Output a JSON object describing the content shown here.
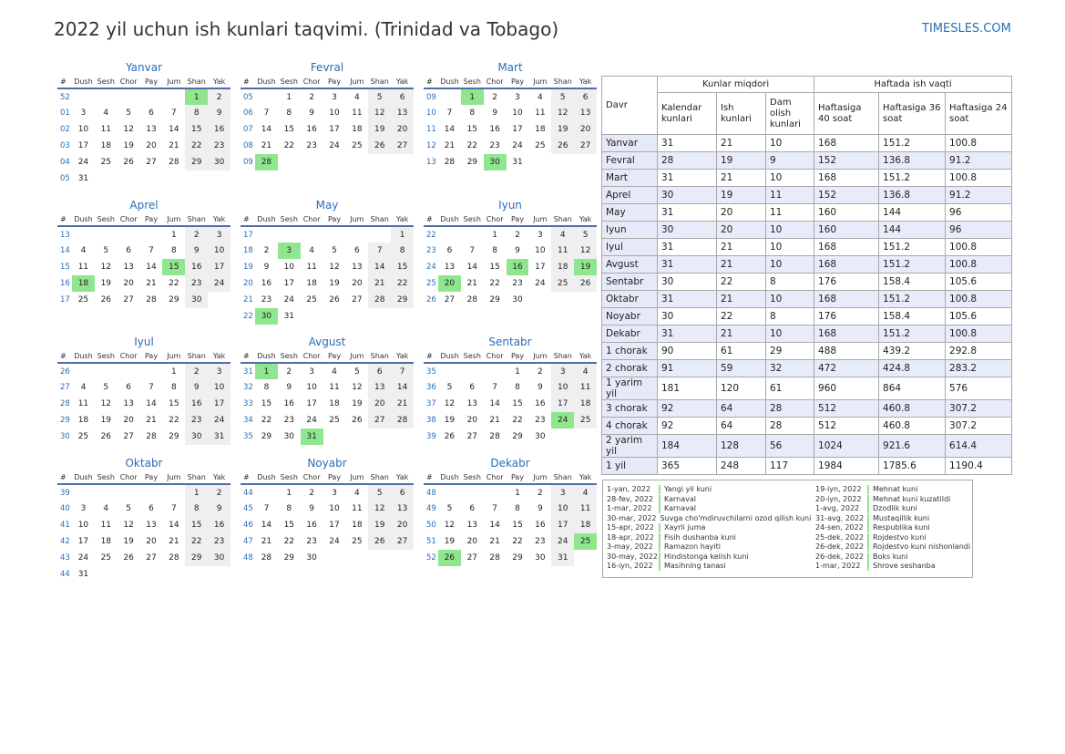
{
  "header": {
    "title": "2022 yil uchun ish kunlari taqvimi. (Trinidad va Tobago)",
    "site": "TIMESLES.COM"
  },
  "weekday_headers": [
    "#",
    "Dush",
    "Sesh",
    "Chor",
    "Pay",
    "Jum",
    "Shan",
    "Yak"
  ],
  "months": [
    {
      "name": "Yanvar",
      "weeks": [
        {
          "wk": "52",
          "days": [
            "",
            "",
            "",
            "",
            "",
            "1",
            "2"
          ]
        },
        {
          "wk": "01",
          "days": [
            "3",
            "4",
            "5",
            "6",
            "7",
            "8",
            "9"
          ]
        },
        {
          "wk": "02",
          "days": [
            "10",
            "11",
            "12",
            "13",
            "14",
            "15",
            "16"
          ]
        },
        {
          "wk": "03",
          "days": [
            "17",
            "18",
            "19",
            "20",
            "21",
            "22",
            "23"
          ]
        },
        {
          "wk": "04",
          "days": [
            "24",
            "25",
            "26",
            "27",
            "28",
            "29",
            "30"
          ]
        },
        {
          "wk": "05",
          "days": [
            "31",
            "",
            "",
            "",
            "",
            "",
            ""
          ]
        }
      ],
      "holidays": [
        "1"
      ]
    },
    {
      "name": "Fevral",
      "weeks": [
        {
          "wk": "05",
          "days": [
            "",
            "1",
            "2",
            "3",
            "4",
            "5",
            "6"
          ]
        },
        {
          "wk": "06",
          "days": [
            "7",
            "8",
            "9",
            "10",
            "11",
            "12",
            "13"
          ]
        },
        {
          "wk": "07",
          "days": [
            "14",
            "15",
            "16",
            "17",
            "18",
            "19",
            "20"
          ]
        },
        {
          "wk": "08",
          "days": [
            "21",
            "22",
            "23",
            "24",
            "25",
            "26",
            "27"
          ]
        },
        {
          "wk": "09",
          "days": [
            "28",
            "",
            "",
            "",
            "",
            "",
            ""
          ]
        }
      ],
      "holidays": [
        "28"
      ]
    },
    {
      "name": "Mart",
      "weeks": [
        {
          "wk": "09",
          "days": [
            "",
            "1",
            "2",
            "3",
            "4",
            "5",
            "6"
          ]
        },
        {
          "wk": "10",
          "days": [
            "7",
            "8",
            "9",
            "10",
            "11",
            "12",
            "13"
          ]
        },
        {
          "wk": "11",
          "days": [
            "14",
            "15",
            "16",
            "17",
            "18",
            "19",
            "20"
          ]
        },
        {
          "wk": "12",
          "days": [
            "21",
            "22",
            "23",
            "24",
            "25",
            "26",
            "27"
          ]
        },
        {
          "wk": "13",
          "days": [
            "28",
            "29",
            "30",
            "31",
            "",
            "",
            ""
          ]
        }
      ],
      "holidays": [
        "1",
        "30"
      ]
    },
    {
      "name": "Aprel",
      "weeks": [
        {
          "wk": "13",
          "days": [
            "",
            "",
            "",
            "",
            "1",
            "2",
            "3"
          ]
        },
        {
          "wk": "14",
          "days": [
            "4",
            "5",
            "6",
            "7",
            "8",
            "9",
            "10"
          ]
        },
        {
          "wk": "15",
          "days": [
            "11",
            "12",
            "13",
            "14",
            "15",
            "16",
            "17"
          ]
        },
        {
          "wk": "16",
          "days": [
            "18",
            "19",
            "20",
            "21",
            "22",
            "23",
            "24"
          ]
        },
        {
          "wk": "17",
          "days": [
            "25",
            "26",
            "27",
            "28",
            "29",
            "30",
            ""
          ]
        }
      ],
      "holidays": [
        "15",
        "18"
      ]
    },
    {
      "name": "May",
      "weeks": [
        {
          "wk": "17",
          "days": [
            "",
            "",
            "",
            "",
            "",
            "",
            "1"
          ]
        },
        {
          "wk": "18",
          "days": [
            "2",
            "3",
            "4",
            "5",
            "6",
            "7",
            "8"
          ]
        },
        {
          "wk": "19",
          "days": [
            "9",
            "10",
            "11",
            "12",
            "13",
            "14",
            "15"
          ]
        },
        {
          "wk": "20",
          "days": [
            "16",
            "17",
            "18",
            "19",
            "20",
            "21",
            "22"
          ]
        },
        {
          "wk": "21",
          "days": [
            "23",
            "24",
            "25",
            "26",
            "27",
            "28",
            "29"
          ]
        },
        {
          "wk": "22",
          "days": [
            "30",
            "31",
            "",
            "",
            "",
            "",
            ""
          ]
        }
      ],
      "holidays": [
        "3",
        "30"
      ]
    },
    {
      "name": "Iyun",
      "weeks": [
        {
          "wk": "22",
          "days": [
            "",
            "",
            "1",
            "2",
            "3",
            "4",
            "5"
          ]
        },
        {
          "wk": "23",
          "days": [
            "6",
            "7",
            "8",
            "9",
            "10",
            "11",
            "12"
          ]
        },
        {
          "wk": "24",
          "days": [
            "13",
            "14",
            "15",
            "16",
            "17",
            "18",
            "19"
          ]
        },
        {
          "wk": "25",
          "days": [
            "20",
            "21",
            "22",
            "23",
            "24",
            "25",
            "26"
          ]
        },
        {
          "wk": "26",
          "days": [
            "27",
            "28",
            "29",
            "30",
            "",
            "",
            ""
          ]
        }
      ],
      "holidays": [
        "16",
        "19",
        "20"
      ]
    },
    {
      "name": "Iyul",
      "weeks": [
        {
          "wk": "26",
          "days": [
            "",
            "",
            "",
            "",
            "1",
            "2",
            "3"
          ]
        },
        {
          "wk": "27",
          "days": [
            "4",
            "5",
            "6",
            "7",
            "8",
            "9",
            "10"
          ]
        },
        {
          "wk": "28",
          "days": [
            "11",
            "12",
            "13",
            "14",
            "15",
            "16",
            "17"
          ]
        },
        {
          "wk": "29",
          "days": [
            "18",
            "19",
            "20",
            "21",
            "22",
            "23",
            "24"
          ]
        },
        {
          "wk": "30",
          "days": [
            "25",
            "26",
            "27",
            "28",
            "29",
            "30",
            "31"
          ]
        }
      ],
      "holidays": []
    },
    {
      "name": "Avgust",
      "weeks": [
        {
          "wk": "31",
          "days": [
            "1",
            "2",
            "3",
            "4",
            "5",
            "6",
            "7"
          ]
        },
        {
          "wk": "32",
          "days": [
            "8",
            "9",
            "10",
            "11",
            "12",
            "13",
            "14"
          ]
        },
        {
          "wk": "33",
          "days": [
            "15",
            "16",
            "17",
            "18",
            "19",
            "20",
            "21"
          ]
        },
        {
          "wk": "34",
          "days": [
            "22",
            "23",
            "24",
            "25",
            "26",
            "27",
            "28"
          ]
        },
        {
          "wk": "35",
          "days": [
            "29",
            "30",
            "31",
            "",
            "",
            "",
            ""
          ]
        }
      ],
      "holidays": [
        "1",
        "31"
      ]
    },
    {
      "name": "Sentabr",
      "weeks": [
        {
          "wk": "35",
          "days": [
            "",
            "",
            "",
            "1",
            "2",
            "3",
            "4"
          ]
        },
        {
          "wk": "36",
          "days": [
            "5",
            "6",
            "7",
            "8",
            "9",
            "10",
            "11"
          ]
        },
        {
          "wk": "37",
          "days": [
            "12",
            "13",
            "14",
            "15",
            "16",
            "17",
            "18"
          ]
        },
        {
          "wk": "38",
          "days": [
            "19",
            "20",
            "21",
            "22",
            "23",
            "24",
            "25"
          ]
        },
        {
          "wk": "39",
          "days": [
            "26",
            "27",
            "28",
            "29",
            "30",
            "",
            ""
          ]
        }
      ],
      "holidays": [
        "24"
      ]
    },
    {
      "name": "Oktabr",
      "weeks": [
        {
          "wk": "39",
          "days": [
            "",
            "",
            "",
            "",
            "",
            "1",
            "2"
          ]
        },
        {
          "wk": "40",
          "days": [
            "3",
            "4",
            "5",
            "6",
            "7",
            "8",
            "9"
          ]
        },
        {
          "wk": "41",
          "days": [
            "10",
            "11",
            "12",
            "13",
            "14",
            "15",
            "16"
          ]
        },
        {
          "wk": "42",
          "days": [
            "17",
            "18",
            "19",
            "20",
            "21",
            "22",
            "23"
          ]
        },
        {
          "wk": "43",
          "days": [
            "24",
            "25",
            "26",
            "27",
            "28",
            "29",
            "30"
          ]
        },
        {
          "wk": "44",
          "days": [
            "31",
            "",
            "",
            "",
            "",
            "",
            ""
          ]
        }
      ],
      "holidays": []
    },
    {
      "name": "Noyabr",
      "weeks": [
        {
          "wk": "44",
          "days": [
            "",
            "1",
            "2",
            "3",
            "4",
            "5",
            "6"
          ]
        },
        {
          "wk": "45",
          "days": [
            "7",
            "8",
            "9",
            "10",
            "11",
            "12",
            "13"
          ]
        },
        {
          "wk": "46",
          "days": [
            "14",
            "15",
            "16",
            "17",
            "18",
            "19",
            "20"
          ]
        },
        {
          "wk": "47",
          "days": [
            "21",
            "22",
            "23",
            "24",
            "25",
            "26",
            "27"
          ]
        },
        {
          "wk": "48",
          "days": [
            "28",
            "29",
            "30",
            "",
            "",
            "",
            ""
          ]
        }
      ],
      "holidays": []
    },
    {
      "name": "Dekabr",
      "weeks": [
        {
          "wk": "48",
          "days": [
            "",
            "",
            "",
            "1",
            "2",
            "3",
            "4"
          ]
        },
        {
          "wk": "49",
          "days": [
            "5",
            "6",
            "7",
            "8",
            "9",
            "10",
            "11"
          ]
        },
        {
          "wk": "50",
          "days": [
            "12",
            "13",
            "14",
            "15",
            "16",
            "17",
            "18"
          ]
        },
        {
          "wk": "51",
          "days": [
            "19",
            "20",
            "21",
            "22",
            "23",
            "24",
            "25"
          ]
        },
        {
          "wk": "52",
          "days": [
            "26",
            "27",
            "28",
            "29",
            "30",
            "31",
            ""
          ]
        }
      ],
      "holidays": [
        "25",
        "26"
      ]
    }
  ],
  "summary": {
    "header_period": "Davr",
    "header_days": "Kunlar miqdori",
    "header_hours": "Haftada ish vaqti",
    "cols": [
      "Kalendar kunlari",
      "Ish kunlari",
      "Dam olish kunlari",
      "Haftasiga 40 soat",
      "Haftasiga 36 soat",
      "Haftasiga 24 soat"
    ],
    "rows": [
      [
        "Yanvar",
        "31",
        "21",
        "10",
        "168",
        "151.2",
        "100.8"
      ],
      [
        "Fevral",
        "28",
        "19",
        "9",
        "152",
        "136.8",
        "91.2"
      ],
      [
        "Mart",
        "31",
        "21",
        "10",
        "168",
        "151.2",
        "100.8"
      ],
      [
        "Aprel",
        "30",
        "19",
        "11",
        "152",
        "136.8",
        "91.2"
      ],
      [
        "May",
        "31",
        "20",
        "11",
        "160",
        "144",
        "96"
      ],
      [
        "Iyun",
        "30",
        "20",
        "10",
        "160",
        "144",
        "96"
      ],
      [
        "Iyul",
        "31",
        "21",
        "10",
        "168",
        "151.2",
        "100.8"
      ],
      [
        "Avgust",
        "31",
        "21",
        "10",
        "168",
        "151.2",
        "100.8"
      ],
      [
        "Sentabr",
        "30",
        "22",
        "8",
        "176",
        "158.4",
        "105.6"
      ],
      [
        "Oktabr",
        "31",
        "21",
        "10",
        "168",
        "151.2",
        "100.8"
      ],
      [
        "Noyabr",
        "30",
        "22",
        "8",
        "176",
        "158.4",
        "105.6"
      ],
      [
        "Dekabr",
        "31",
        "21",
        "10",
        "168",
        "151.2",
        "100.8"
      ],
      [
        "1 chorak",
        "90",
        "61",
        "29",
        "488",
        "439.2",
        "292.8"
      ],
      [
        "2 chorak",
        "91",
        "59",
        "32",
        "472",
        "424.8",
        "283.2"
      ],
      [
        "1 yarim yil",
        "181",
        "120",
        "61",
        "960",
        "864",
        "576"
      ],
      [
        "3 chorak",
        "92",
        "64",
        "28",
        "512",
        "460.8",
        "307.2"
      ],
      [
        "4 chorak",
        "92",
        "64",
        "28",
        "512",
        "460.8",
        "307.2"
      ],
      [
        "2 yarim yil",
        "184",
        "128",
        "56",
        "1024",
        "921.6",
        "614.4"
      ],
      [
        "1 yil",
        "365",
        "248",
        "117",
        "1984",
        "1785.6",
        "1190.4"
      ]
    ]
  },
  "holidays_left": [
    {
      "date": "1-yan, 2022",
      "name": "Yangi yil kuni"
    },
    {
      "date": "28-fev, 2022",
      "name": "Karnaval"
    },
    {
      "date": "1-mar, 2022",
      "name": "Karnaval"
    },
    {
      "date": "30-mar, 2022",
      "name": "Suvga cho'mdiruvchilarni ozod qilish kuni"
    },
    {
      "date": "15-apr, 2022",
      "name": "Xayrli juma"
    },
    {
      "date": "18-apr, 2022",
      "name": "Fisih dushanba kuni"
    },
    {
      "date": "3-may, 2022",
      "name": "Ramazon hayiti"
    },
    {
      "date": "30-may, 2022",
      "name": "Hindistonga kelish kuni"
    },
    {
      "date": "16-iyn, 2022",
      "name": "Masihning tanasi"
    }
  ],
  "holidays_right": [
    {
      "date": "19-iyn, 2022",
      "name": "Mehnat kuni"
    },
    {
      "date": "20-iyn, 2022",
      "name": "Mehnat kuni kuzatildi"
    },
    {
      "date": "1-avg, 2022",
      "name": "Dzodlik kuni"
    },
    {
      "date": "31-avg, 2022",
      "name": "Mustaqillik kuni"
    },
    {
      "date": "24-sen, 2022",
      "name": "Respublika kuni"
    },
    {
      "date": "25-dek, 2022",
      "name": "Rojdestvo kuni"
    },
    {
      "date": "26-dek, 2022",
      "name": "Rojdestvo kuni nishonlandi"
    },
    {
      "date": "26-dek, 2022",
      "name": "Boks kuni"
    },
    {
      "date": "1-mar, 2022",
      "name": "Shrove seshanba"
    }
  ],
  "colors": {
    "accent": "#2a6db8",
    "holiday": "#8fe68f",
    "weekend": "#efefef",
    "table_stripe": "#e6e9f7"
  }
}
